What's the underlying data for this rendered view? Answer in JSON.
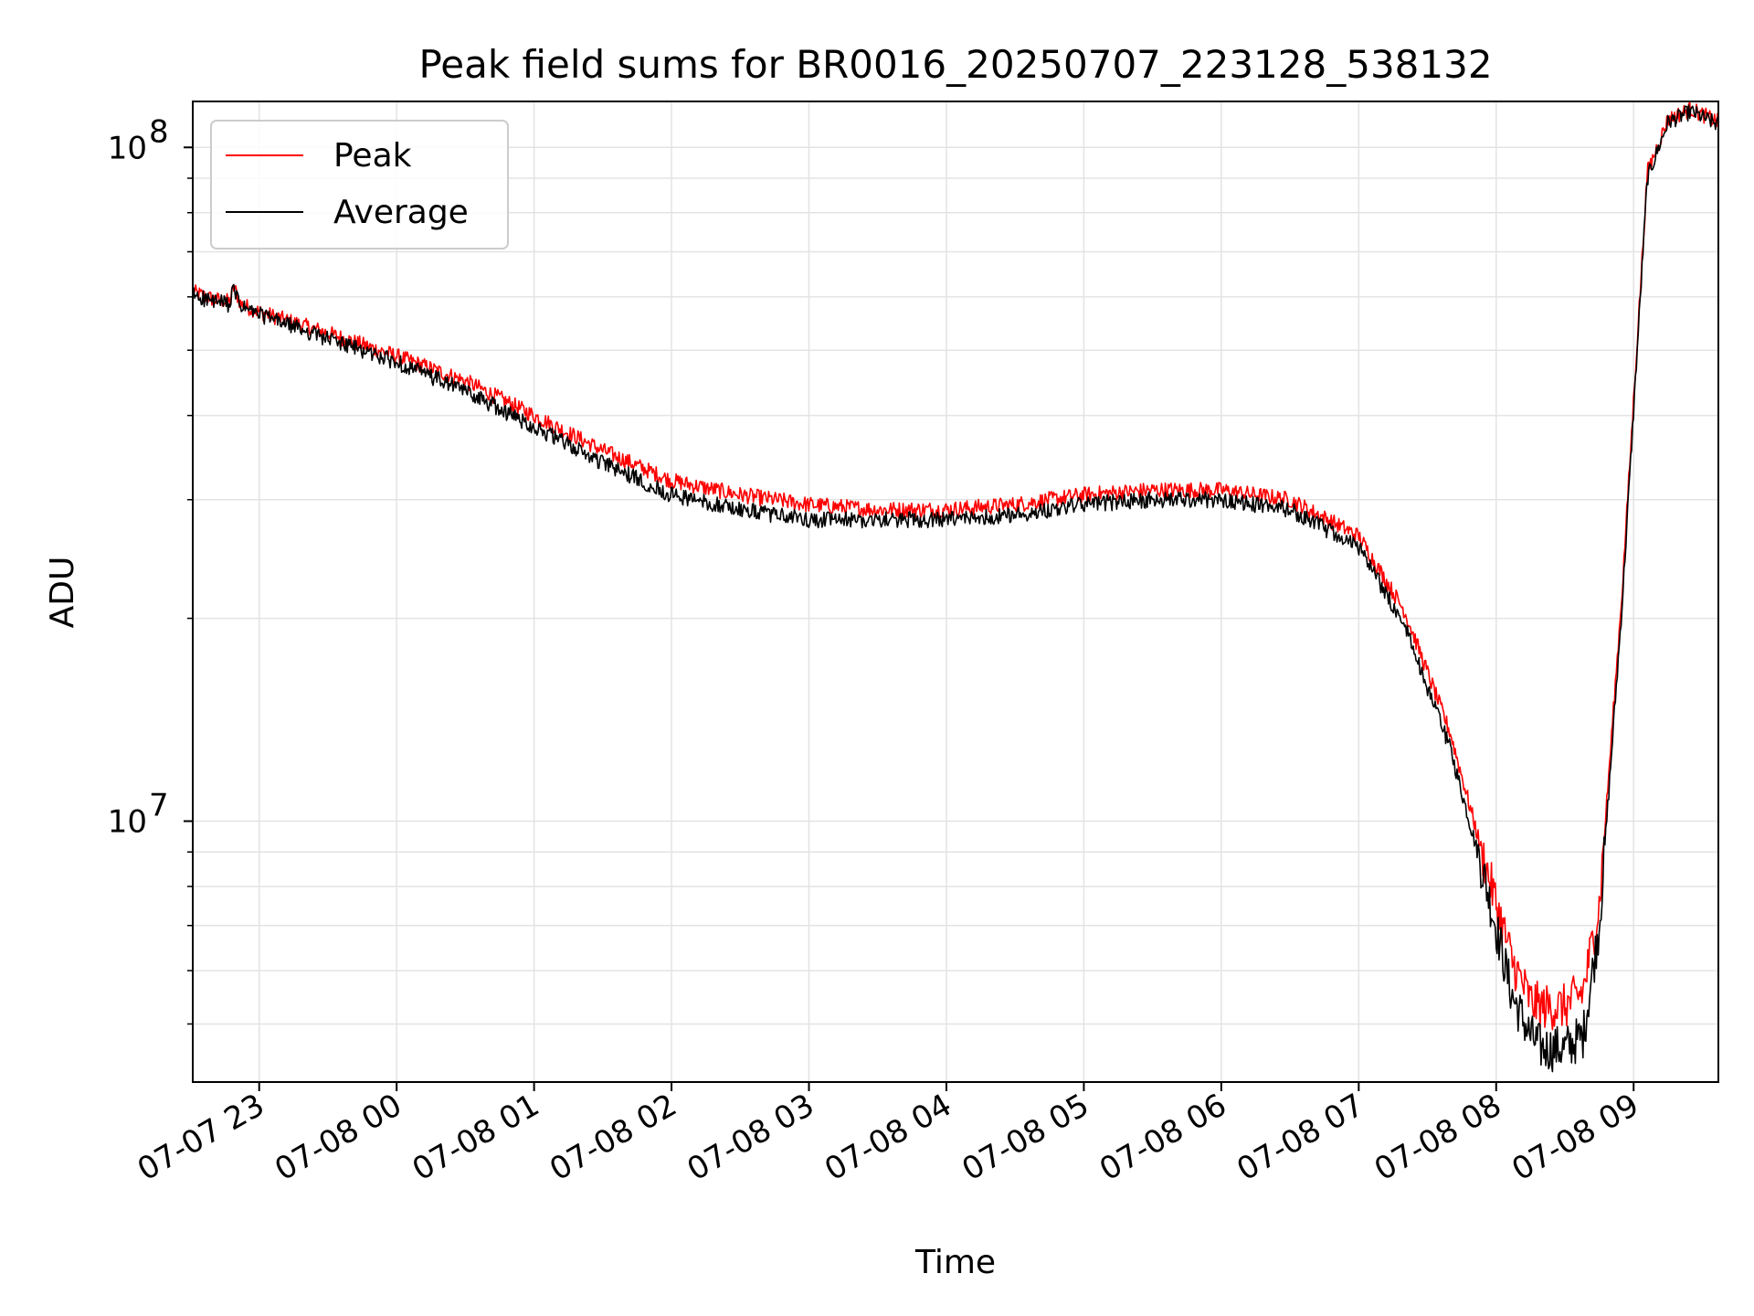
{
  "chart_data": {
    "type": "line",
    "title": "Peak field sums for BR0016_20250707_223128_538132",
    "xlabel": "Time",
    "ylabel": "ADU",
    "yscale": "log",
    "xlim": [
      "2025-07-07 22:31",
      "2025-07-08 09:37"
    ],
    "ylim": [
      4100000,
      117000000
    ],
    "grid": true,
    "legend": "upper-left",
    "x_ticks": [
      "07-07 23",
      "07-08 00",
      "07-08 01",
      "07-08 02",
      "07-08 03",
      "07-08 04",
      "07-08 05",
      "07-08 06",
      "07-08 07",
      "07-08 08",
      "07-08 09"
    ],
    "x_tick_times": [
      "2025-07-07 23:00",
      "2025-07-08 00:00",
      "2025-07-08 01:00",
      "2025-07-08 02:00",
      "2025-07-08 03:00",
      "2025-07-08 04:00",
      "2025-07-08 05:00",
      "2025-07-08 06:00",
      "2025-07-08 07:00",
      "2025-07-08 08:00",
      "2025-07-08 09:00"
    ],
    "y_ticks": [
      {
        "value": 10000000,
        "base": "10",
        "exp": "7"
      },
      {
        "value": 100000000,
        "base": "10",
        "exp": "8"
      }
    ],
    "x": [
      "2025-07-07 22:31",
      "2025-07-07 22:40",
      "2025-07-07 22:47",
      "2025-07-07 22:49",
      "2025-07-07 22:52",
      "2025-07-07 23:00",
      "2025-07-07 23:30",
      "2025-07-08 00:00",
      "2025-07-08 00:30",
      "2025-07-08 01:00",
      "2025-07-08 01:30",
      "2025-07-08 02:00",
      "2025-07-08 02:30",
      "2025-07-08 03:00",
      "2025-07-08 03:30",
      "2025-07-08 04:00",
      "2025-07-08 04:30",
      "2025-07-08 05:00",
      "2025-07-08 05:30",
      "2025-07-08 06:00",
      "2025-07-08 06:30",
      "2025-07-08 07:00",
      "2025-07-08 07:20",
      "2025-07-08 07:40",
      "2025-07-08 07:55",
      "2025-07-08 08:07",
      "2025-07-08 08:15",
      "2025-07-08 08:20",
      "2025-07-08 08:30",
      "2025-07-08 08:38",
      "2025-07-08 08:45",
      "2025-07-08 08:55",
      "2025-07-08 09:06",
      "2025-07-08 09:15",
      "2025-07-08 09:25",
      "2025-07-08 09:37"
    ],
    "series": [
      {
        "name": "Peak",
        "color": "#ff0000",
        "values": [
          61000000,
          59500000,
          59000000,
          62000000,
          58500000,
          57000000,
          53000000,
          49000000,
          45000000,
          40000000,
          35500000,
          32000000,
          30500000,
          29500000,
          29000000,
          29000000,
          29500000,
          30500000,
          31000000,
          31000000,
          30000000,
          26500000,
          20500000,
          13500000,
          8700000,
          6200000,
          5400000,
          5300000,
          5300000,
          5600000,
          7500000,
          22000000,
          92000000,
          110000000,
          114000000,
          109000000
        ]
      },
      {
        "name": "Average",
        "color": "#000000",
        "values": [
          60500000,
          59000000,
          58500000,
          61500000,
          58000000,
          56500000,
          52000000,
          48000000,
          43500000,
          38500000,
          34000000,
          30500000,
          29000000,
          28000000,
          28000000,
          28000000,
          28500000,
          29500000,
          30000000,
          30000000,
          29000000,
          25500000,
          19500000,
          12800000,
          8200000,
          5500000,
          4800000,
          4600000,
          4600000,
          4800000,
          7000000,
          21000000,
          90000000,
          109000000,
          113000000,
          108000000
        ]
      }
    ]
  }
}
